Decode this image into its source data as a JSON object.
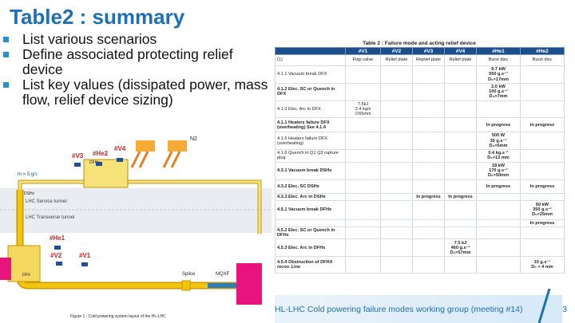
{
  "slide": {
    "title": "Table2 : summary",
    "bullets": [
      "List various scenarios",
      "Define associated protecting relief device",
      "List key values (dissipated power, mass flow, relief device sizing)"
    ],
    "footer": "HL-LHC Cold powering failure modes working group (meeting #14)",
    "page_number": "3"
  },
  "diagram": {
    "caption": "Figure 1 : Cold powering system layout of the HL-LHC",
    "labels": {
      "v3": "#V3",
      "he2": "#He2",
      "v4": "#V4",
      "he1": "#He1",
      "v2": "#V2",
      "v1": "#V1",
      "dfhx": "DFHx",
      "dshx": "DSHx",
      "service_tunnel": "LHC Service tunnel",
      "transverse_tunnel": "LHC Transverse tunnel",
      "splice": "Splice",
      "mqxf": "MQXF",
      "flow": "m = 5 g/s",
      "ln2": "N2",
      "dfx": "DFX"
    },
    "colors": {
      "pipe": "#f1c40f",
      "pipe_edge": "#c79a00",
      "magent": "#e8137b",
      "relief": "#1f4e9b",
      "label_red": "#d81b1b"
    }
  },
  "table": {
    "caption": "Table 2 : Failure mode and acting relief device",
    "headers": [
      "",
      "#V1",
      "#V2",
      "#V3",
      "#V4",
      "#He1",
      "#He2"
    ],
    "rows": [
      {
        "cells": [
          "(1)",
          "Flap valve",
          "Relief plate",
          "Replief plate",
          "Relief plate",
          "Burst disc",
          "Burst disc"
        ],
        "style": ""
      },
      {
        "cells": [
          "4.1.1 Vacuum break DFX",
          "",
          "",
          "",
          "",
          "9.7 kW\n550 g.s⁻¹\nD₀>17mm",
          ""
        ],
        "style": ""
      },
      {
        "cells": [
          "4.1.2 Elec. SC or Quench in DFX",
          "",
          "",
          "",
          "",
          "2.0 kW\n100 g.s⁻¹\nD₀>7mm",
          ""
        ],
        "style": "blue"
      },
      {
        "cells": [
          "4.1.3 Elec. Arc in DFX",
          "7.5kJ\n2.4 kg/s\n∅65mm",
          "",
          "",
          "",
          "",
          ""
        ],
        "style": ""
      },
      {
        "cells": [
          "4.1.1 Heaters failure DFX (overheating) See 4.1.4",
          "",
          "",
          "",
          "",
          "In progress",
          "In progress"
        ],
        "style": "orange"
      },
      {
        "cells": [
          "4.1.5 Heaters failure DFX (overheating)",
          "",
          "",
          "",
          "",
          "500 W\n35 g.s⁻¹\nD₀>5mm",
          ""
        ],
        "style": ""
      },
      {
        "cells": [
          "4.1.6 Quench in Q1 Q3 rupture plug",
          "",
          "",
          "",
          "",
          "0.4 kg.s⁻¹\nD₀>12 mm",
          ""
        ],
        "style": ""
      },
      {
        "cells": [
          "4.3.1 Vacuum break DSHx",
          "",
          "",
          "",
          "",
          "18 kW\n170 g.s⁻¹\nD₀>50mm",
          ""
        ],
        "style": "blue"
      },
      {
        "cells": [
          "4.3.2 Elec. SC DSHx",
          "",
          "",
          "",
          "",
          "In progress",
          "In progress"
        ],
        "style": "orange"
      },
      {
        "cells": [
          "4.3.3 Elec. Arc in DSHx",
          "",
          "",
          "In progress",
          "In progress",
          "",
          ""
        ],
        "style": "orange"
      },
      {
        "cells": [
          "4.5.1 Vacuum break DFHx",
          "",
          "",
          "",
          "",
          "",
          "60 kW\n350 g.s⁻¹\nD₀>25mm"
        ],
        "style": "blue"
      },
      {
        "cells": [
          "",
          "",
          "",
          "",
          "",
          "",
          "In progress"
        ],
        "style": "orange"
      },
      {
        "cells": [
          "4.5.2 Elec. SC or Quench in DFHx",
          "",
          "",
          "",
          "",
          "",
          ""
        ],
        "style": "orange"
      },
      {
        "cells": [
          "4.5.3 Elec. Arc in DFHx",
          "",
          "",
          "",
          "7.5 kJ\n460 g.s⁻¹\nD₀>57mm",
          "",
          ""
        ],
        "style": "blue"
      },
      {
        "cells": [
          "4.5.4 Obstruction of DFHX recov. Line",
          "",
          "",
          "",
          "",
          "",
          "10 g.s⁻¹\nD₀ > 4 mm"
        ],
        "style": "blue"
      }
    ]
  }
}
